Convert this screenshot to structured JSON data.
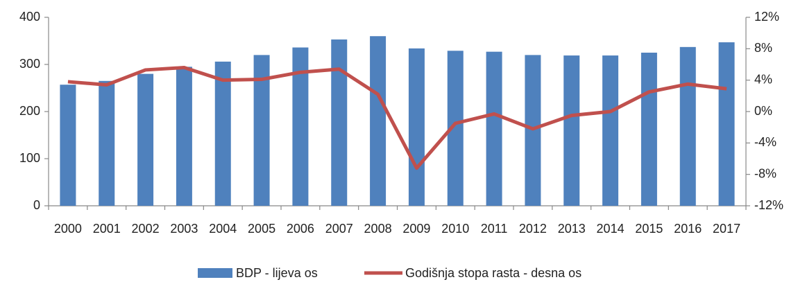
{
  "chart_data": {
    "type": "bar_line",
    "categories": [
      "2000",
      "2001",
      "2002",
      "2003",
      "2004",
      "2005",
      "2006",
      "2007",
      "2008",
      "2009",
      "2010",
      "2011",
      "2012",
      "2013",
      "2014",
      "2015",
      "2016",
      "2017"
    ],
    "series": [
      {
        "name": "BDP - lijeva os",
        "color": "#4f81bd",
        "type": "bar",
        "values": [
          257,
          265,
          280,
          295,
          306,
          320,
          336,
          353,
          360,
          334,
          329,
          327,
          320,
          319,
          319,
          325,
          337,
          347
        ]
      },
      {
        "name": "Godišnja stopa rasta - desna os",
        "color": "#c0504d",
        "type": "line",
        "axis": "y2",
        "values": [
          3.8,
          3.4,
          5.3,
          5.6,
          4.0,
          4.1,
          5.0,
          5.4,
          2.2,
          -7.2,
          -1.5,
          -0.3,
          -2.2,
          -0.5,
          0.0,
          2.5,
          3.5,
          2.9
        ]
      }
    ],
    "ylim": [
      0,
      400
    ],
    "yticks": [
      0,
      100,
      200,
      300,
      400
    ],
    "y2lim": [
      -12,
      12
    ],
    "y2ticks": [
      {
        "value": -12,
        "label": "-12%"
      },
      {
        "value": -8,
        "label": "-8%"
      },
      {
        "value": -4,
        "label": "-4%"
      },
      {
        "value": 0,
        "label": "0%"
      },
      {
        "value": 4,
        "label": "4%"
      },
      {
        "value": 8,
        "label": "8%"
      },
      {
        "value": 12,
        "label": "12%"
      }
    ],
    "grid": false
  }
}
